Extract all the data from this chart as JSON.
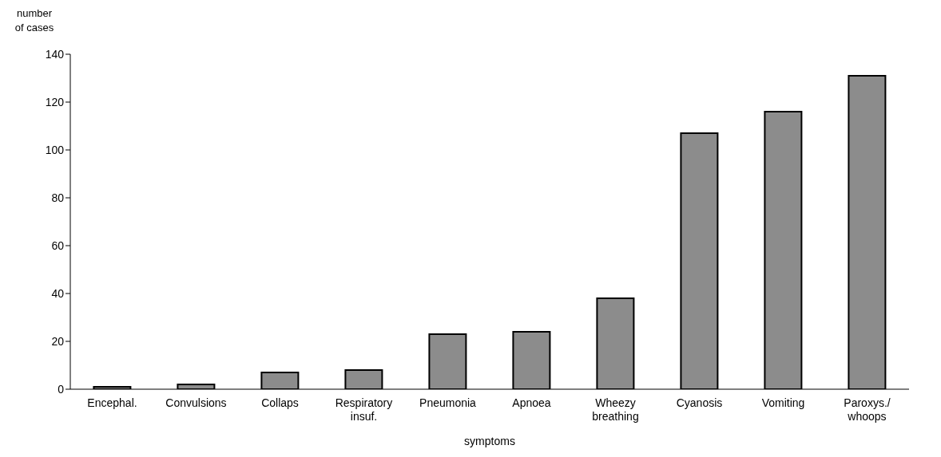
{
  "chart_data": {
    "type": "bar",
    "ylabel": "number of cases",
    "xlabel": "symptoms",
    "categories": [
      "Encephal.",
      "Convulsions",
      "Collaps",
      "Respiratory insuf.",
      "Pneumonia",
      "Apnoea",
      "Wheezy breathing",
      "Cyanosis",
      "Vomiting",
      "Paroxys./ whoops"
    ],
    "values": [
      1,
      2,
      7,
      8,
      23,
      24,
      38,
      107,
      116,
      131
    ],
    "color": "#8c8c8c",
    "ylim": [
      0,
      140
    ],
    "yticks": [
      0,
      20,
      40,
      60,
      80,
      100,
      120,
      140
    ],
    "grid": false,
    "legend": false
  }
}
